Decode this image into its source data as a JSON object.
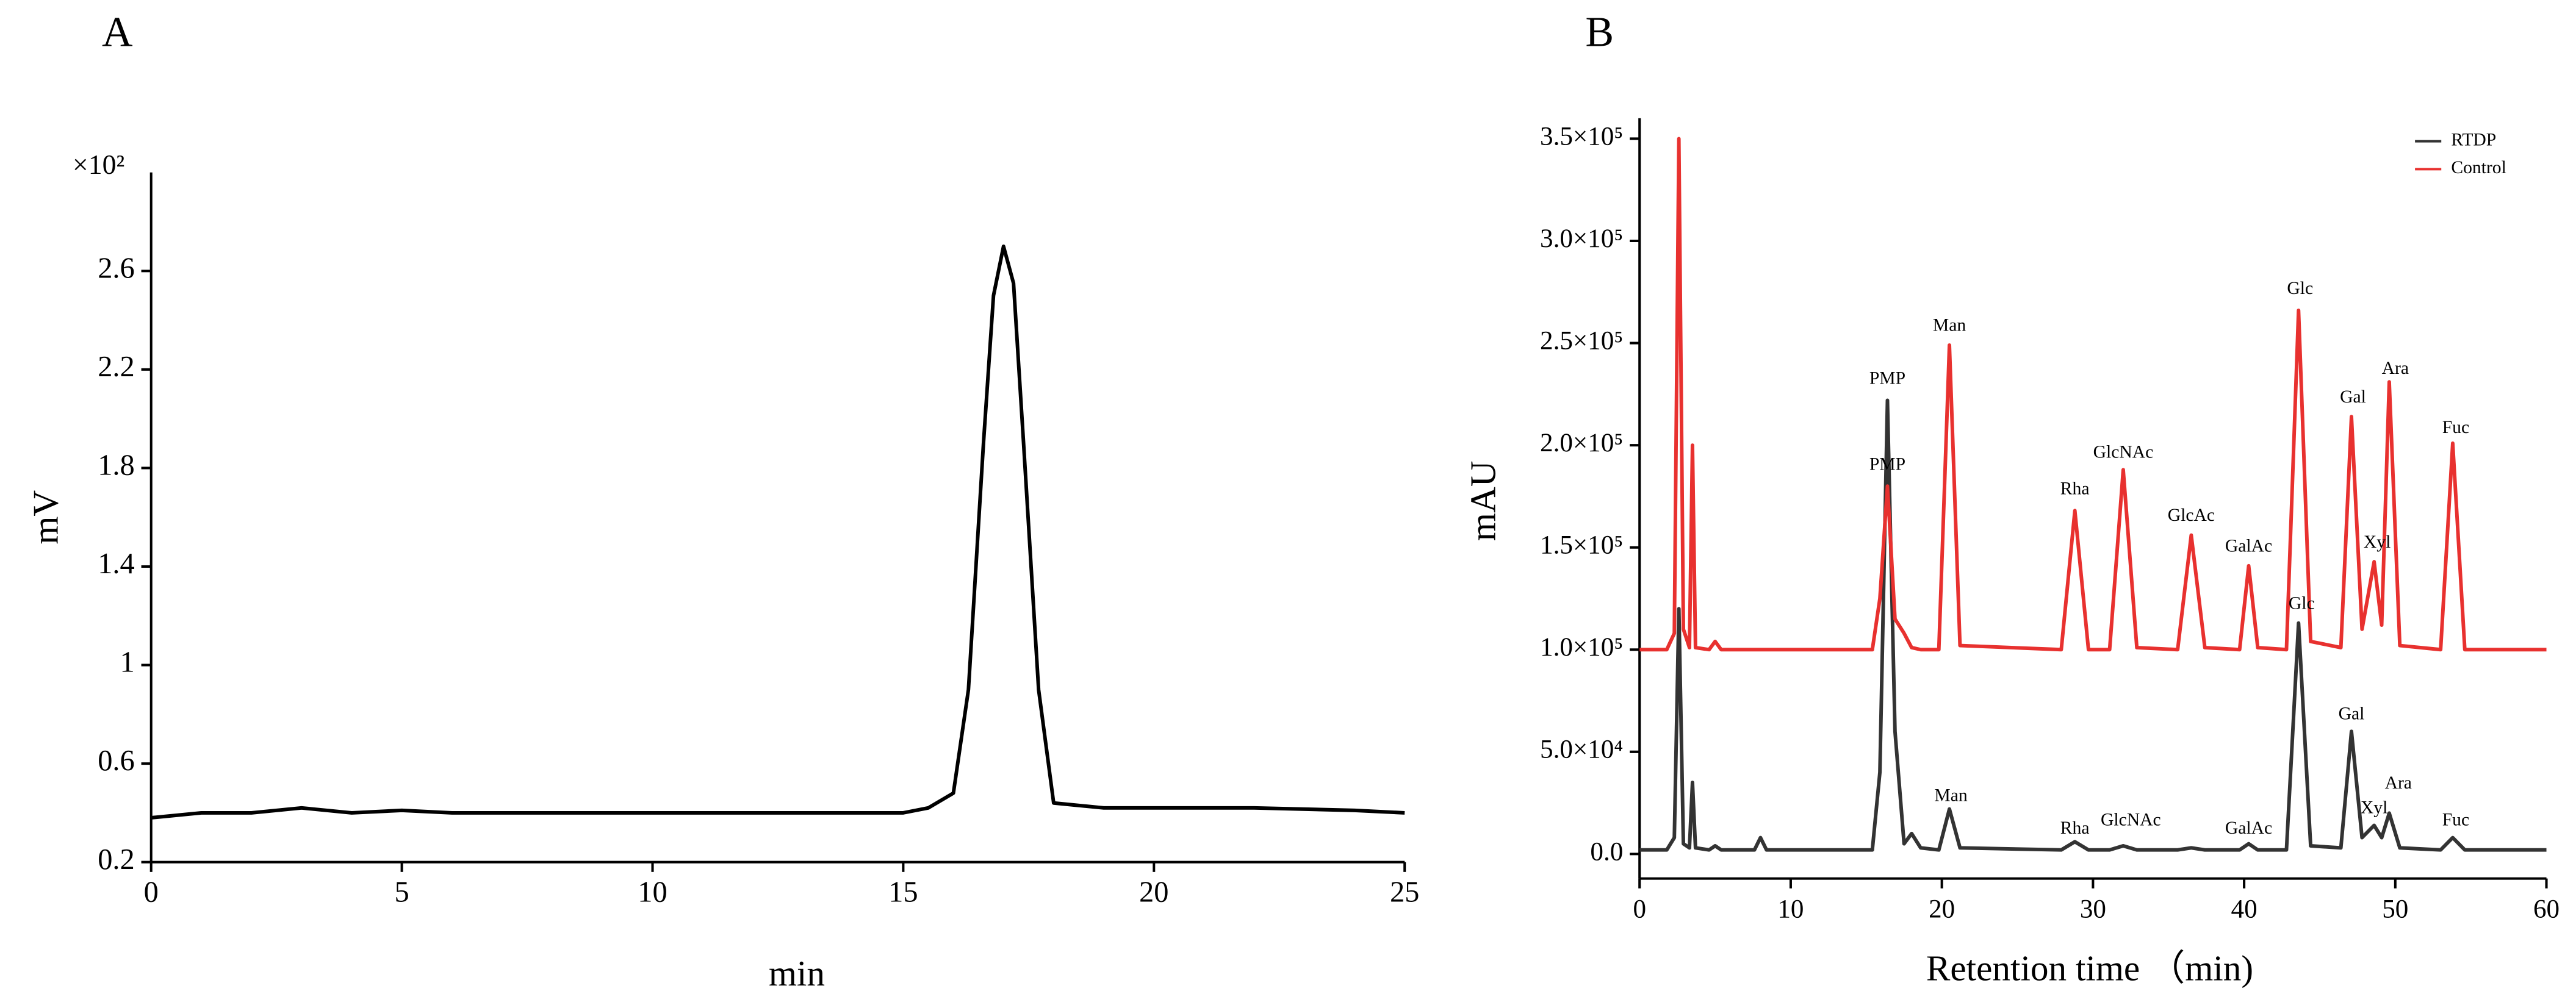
{
  "chart_data": [
    {
      "type": "line",
      "panel_label": "A",
      "ylabel": "mV",
      "xlabel": "min",
      "y_multiplier": "×10²",
      "xlim": [
        0,
        25
      ],
      "ylim": [
        0.2,
        3.0
      ],
      "xticks": [
        0,
        5,
        10,
        15,
        20,
        25
      ],
      "yticks": [
        0.2,
        0.6,
        1,
        1.4,
        1.8,
        2.2,
        2.6
      ],
      "color": "#000000",
      "x": [
        0,
        1,
        2,
        3,
        4,
        5,
        6,
        8,
        10,
        12,
        14,
        15,
        15.5,
        16,
        16.3,
        16.6,
        16.8,
        17,
        17.2,
        17.4,
        17.7,
        18,
        19,
        20,
        22,
        24,
        25
      ],
      "values": [
        0.38,
        0.4,
        0.4,
        0.42,
        0.4,
        0.41,
        0.4,
        0.4,
        0.4,
        0.4,
        0.4,
        0.4,
        0.42,
        0.48,
        0.9,
        1.9,
        2.5,
        2.7,
        2.55,
        1.9,
        0.9,
        0.44,
        0.42,
        0.42,
        0.42,
        0.41,
        0.4
      ]
    },
    {
      "type": "line",
      "panel_label": "B",
      "ylabel": "mAU",
      "xlabel": "Retention time （min)",
      "xlim": [
        0,
        60
      ],
      "ylim": [
        -12000,
        360000
      ],
      "xticks": [
        0,
        10,
        20,
        30,
        40,
        50,
        60
      ],
      "yticks": [
        {
          "value": 0,
          "label": "0.0"
        },
        {
          "value": 50000,
          "label": "5.0×10⁴"
        },
        {
          "value": 100000,
          "label": "1.0×10⁵"
        },
        {
          "value": 150000,
          "label": "1.5×10⁵"
        },
        {
          "value": 200000,
          "label": "2.0×10⁵"
        },
        {
          "value": 250000,
          "label": "2.5×10⁵"
        },
        {
          "value": 300000,
          "label": "3.0×10⁵"
        },
        {
          "value": 350000,
          "label": "3.5×10⁵"
        }
      ],
      "legend": "upper right",
      "x": [
        0,
        1.8,
        2.3,
        2.6,
        2.9,
        3.3,
        3.5,
        3.7,
        4.6,
        5,
        5.4,
        7.6,
        8,
        8.4,
        15.4,
        15.9,
        16.4,
        16.9,
        17.5,
        18,
        18.6,
        19.8,
        20.5,
        21.2,
        27.9,
        28.8,
        29.7,
        31.1,
        32,
        32.9,
        35.6,
        36.5,
        37.4,
        39.7,
        40.3,
        40.9,
        42.8,
        43.6,
        44.4,
        46.4,
        47.1,
        47.8,
        48.6,
        49.1,
        49.6,
        50.3,
        53,
        53.8,
        54.6,
        60
      ],
      "series": [
        {
          "name": "RTDP",
          "color": "#333333",
          "values": [
            2000,
            2000,
            8000,
            120000,
            5000,
            3000,
            35000,
            3000,
            2000,
            4000,
            2000,
            2000,
            8000,
            2000,
            2000,
            40000,
            222000,
            60000,
            5000,
            10000,
            3000,
            2000,
            22000,
            3000,
            2000,
            6000,
            2000,
            2000,
            4000,
            2000,
            2000,
            3000,
            2000,
            2000,
            5000,
            2000,
            2000,
            113000,
            4000,
            3000,
            60000,
            8000,
            14000,
            8000,
            20000,
            3000,
            2000,
            8000,
            2000,
            2000
          ]
        },
        {
          "name": "Control",
          "color": "#e8312f",
          "values": [
            100000,
            100000,
            108000,
            350000,
            110000,
            101000,
            200000,
            101000,
            100000,
            104000,
            100000,
            100000,
            100000,
            100000,
            100000,
            125000,
            180000,
            115000,
            108000,
            101000,
            100000,
            100000,
            249000,
            102000,
            100000,
            168000,
            100000,
            100000,
            188000,
            101000,
            100000,
            156000,
            101000,
            100000,
            141000,
            101000,
            100000,
            266000,
            104000,
            101000,
            214000,
            110000,
            143000,
            112000,
            231000,
            102000,
            100000,
            201000,
            100000,
            100000
          ]
        }
      ],
      "annotations": [
        "PMP",
        "Man",
        "Rha",
        "GlcNAc",
        "GlcAc",
        "GalAc",
        "Glc",
        "Gal",
        "Xyl",
        "Ara",
        "Fuc",
        "PMP",
        "Man",
        "Rha",
        "GlcNAc",
        "GalAc",
        "Glc",
        "Gal",
        "Xyl",
        "Ara",
        "Fuc"
      ]
    }
  ]
}
